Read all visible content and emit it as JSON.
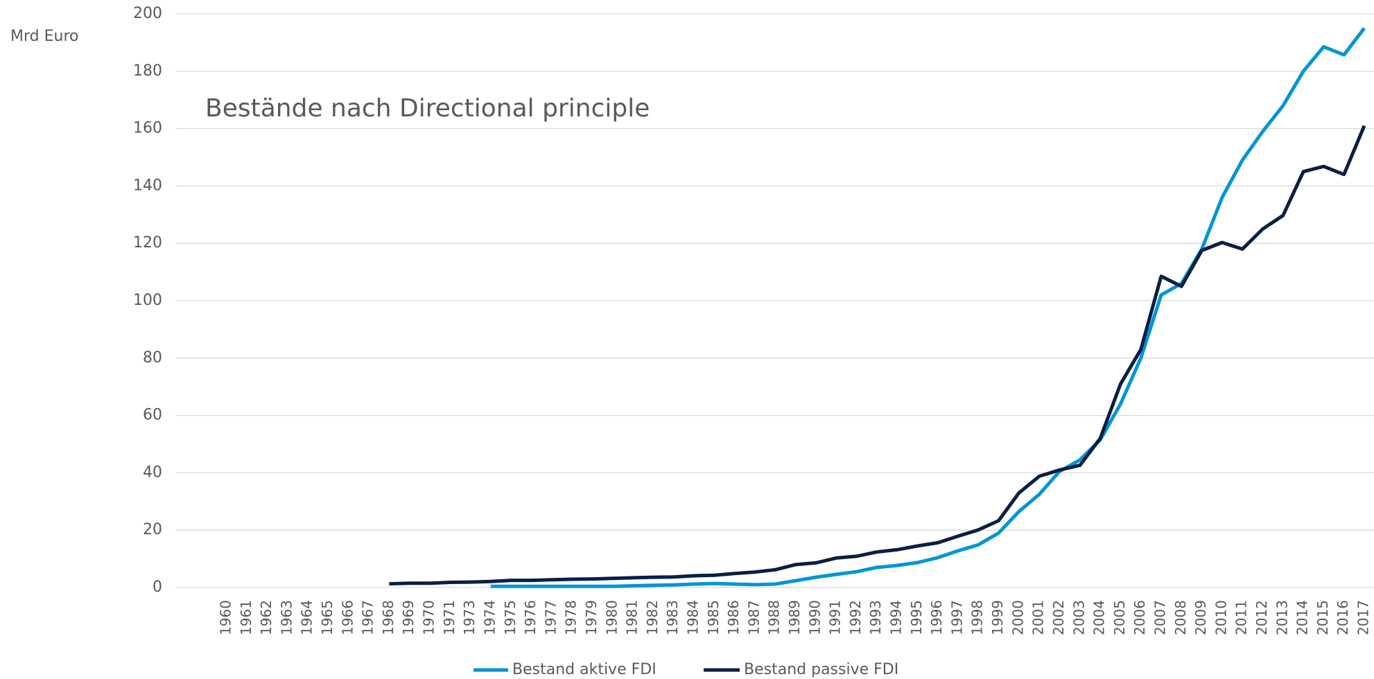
{
  "chart_data": {
    "type": "line",
    "title": "Bestände nach Directional principle",
    "y_label": "Mrd Euro",
    "categories": [
      "1960",
      "1961",
      "1962",
      "1963",
      "1964",
      "1965",
      "1966",
      "1967",
      "1968",
      "1969",
      "1970",
      "1971",
      "1973",
      "1974",
      "1975",
      "1976",
      "1977",
      "1978",
      "1979",
      "1980",
      "1981",
      "1982",
      "1983",
      "1984",
      "1985",
      "1986",
      "1987",
      "1988",
      "1989",
      "1990",
      "1991",
      "1992",
      "1993",
      "1994",
      "1995",
      "1996",
      "1997",
      "1998",
      "1999",
      "2000",
      "2001",
      "2002",
      "2003",
      "2004",
      "2005",
      "2006",
      "2007",
      "2008",
      "2009",
      "2010",
      "2011",
      "2012",
      "2013",
      "2014",
      "2015",
      "2016",
      "2017"
    ],
    "series": [
      {
        "name": "Bestand aktive FDI",
        "color": "#0095d6",
        "values": [
          null,
          null,
          null,
          null,
          null,
          null,
          null,
          null,
          null,
          null,
          null,
          null,
          null,
          0.4,
          0.4,
          0.4,
          0.4,
          0.4,
          0.4,
          0.4,
          0.6,
          0.8,
          0.9,
          1.2,
          1.4,
          1.2,
          1.0,
          1.2,
          2.4,
          3.6,
          4.6,
          5.5,
          7,
          7.7,
          8.7,
          10.4,
          12.8,
          14.9,
          19,
          26.5,
          32.5,
          40.5,
          44.5,
          51.5,
          64,
          80,
          102,
          106,
          118,
          136,
          149,
          159,
          168,
          180,
          188.5,
          185.7,
          195
        ]
      },
      {
        "name": "Bestand passive FDI",
        "color": "#0a1f44",
        "values": [
          null,
          null,
          null,
          null,
          null,
          null,
          null,
          null,
          1.3,
          1.5,
          1.5,
          1.8,
          1.9,
          2.1,
          2.5,
          2.5,
          2.7,
          2.9,
          3.0,
          3.2,
          3.4,
          3.6,
          3.7,
          4.1,
          4.3,
          4.9,
          5.4,
          6.2,
          8.0,
          8.6,
          10.3,
          10.9,
          12.4,
          13.2,
          14.5,
          15.6,
          17.9,
          20.1,
          23.3,
          33,
          38.8,
          41,
          42.6,
          52,
          71,
          83,
          108.5,
          105,
          117.5,
          120.3,
          118,
          125,
          129.7,
          145,
          146.8,
          144,
          161
        ]
      }
    ],
    "ylim": [
      0,
      200
    ],
    "yticks": [
      0,
      20,
      40,
      60,
      80,
      100,
      120,
      140,
      160,
      180,
      200
    ],
    "grid": true,
    "legend": "bottom"
  }
}
